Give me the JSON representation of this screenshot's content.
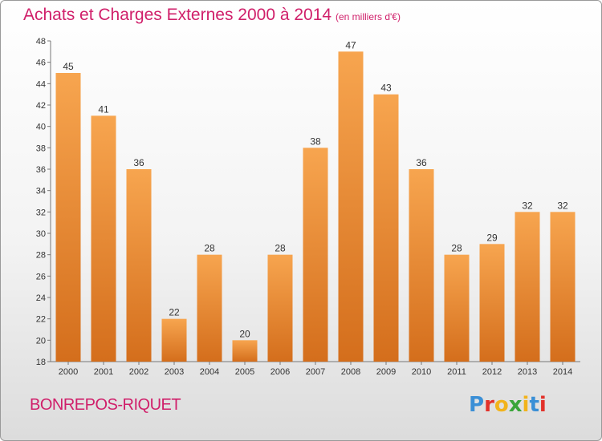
{
  "header": {
    "title": "Achats et Charges Externes 2000 à 2014",
    "unit": "(en milliers d'€)"
  },
  "footer": {
    "place": "BONREPOS-RIQUET",
    "logo": [
      "P",
      "r",
      "o",
      "x",
      "i",
      "t",
      "i"
    ]
  },
  "colors": {
    "title": "#d01f6a",
    "bar_light": "#f7a54f",
    "bar_dark": "#d46e1c",
    "logo": [
      "#3a8fd6",
      "#e2312a",
      "#f2b31b",
      "#3aa53a",
      "#f2b31b",
      "#3a8fd6",
      "#e2312a"
    ]
  },
  "chart_data": {
    "type": "bar",
    "categories": [
      "2000",
      "2001",
      "2002",
      "2003",
      "2004",
      "2005",
      "2006",
      "2007",
      "2008",
      "2009",
      "2010",
      "2011",
      "2012",
      "2013",
      "2014"
    ],
    "values": [
      45,
      41,
      36,
      22,
      28,
      20,
      28,
      38,
      47,
      43,
      36,
      28,
      29,
      32,
      32
    ],
    "title": "Achats et Charges Externes 2000 à 2014",
    "subtitle": "(en milliers d'€)",
    "xlabel": "",
    "ylabel": "",
    "ylim": [
      18,
      48
    ],
    "yticks": [
      18,
      20,
      22,
      24,
      26,
      28,
      30,
      32,
      34,
      36,
      38,
      40,
      42,
      44,
      46,
      48
    ],
    "grid": false,
    "legend": "none"
  }
}
